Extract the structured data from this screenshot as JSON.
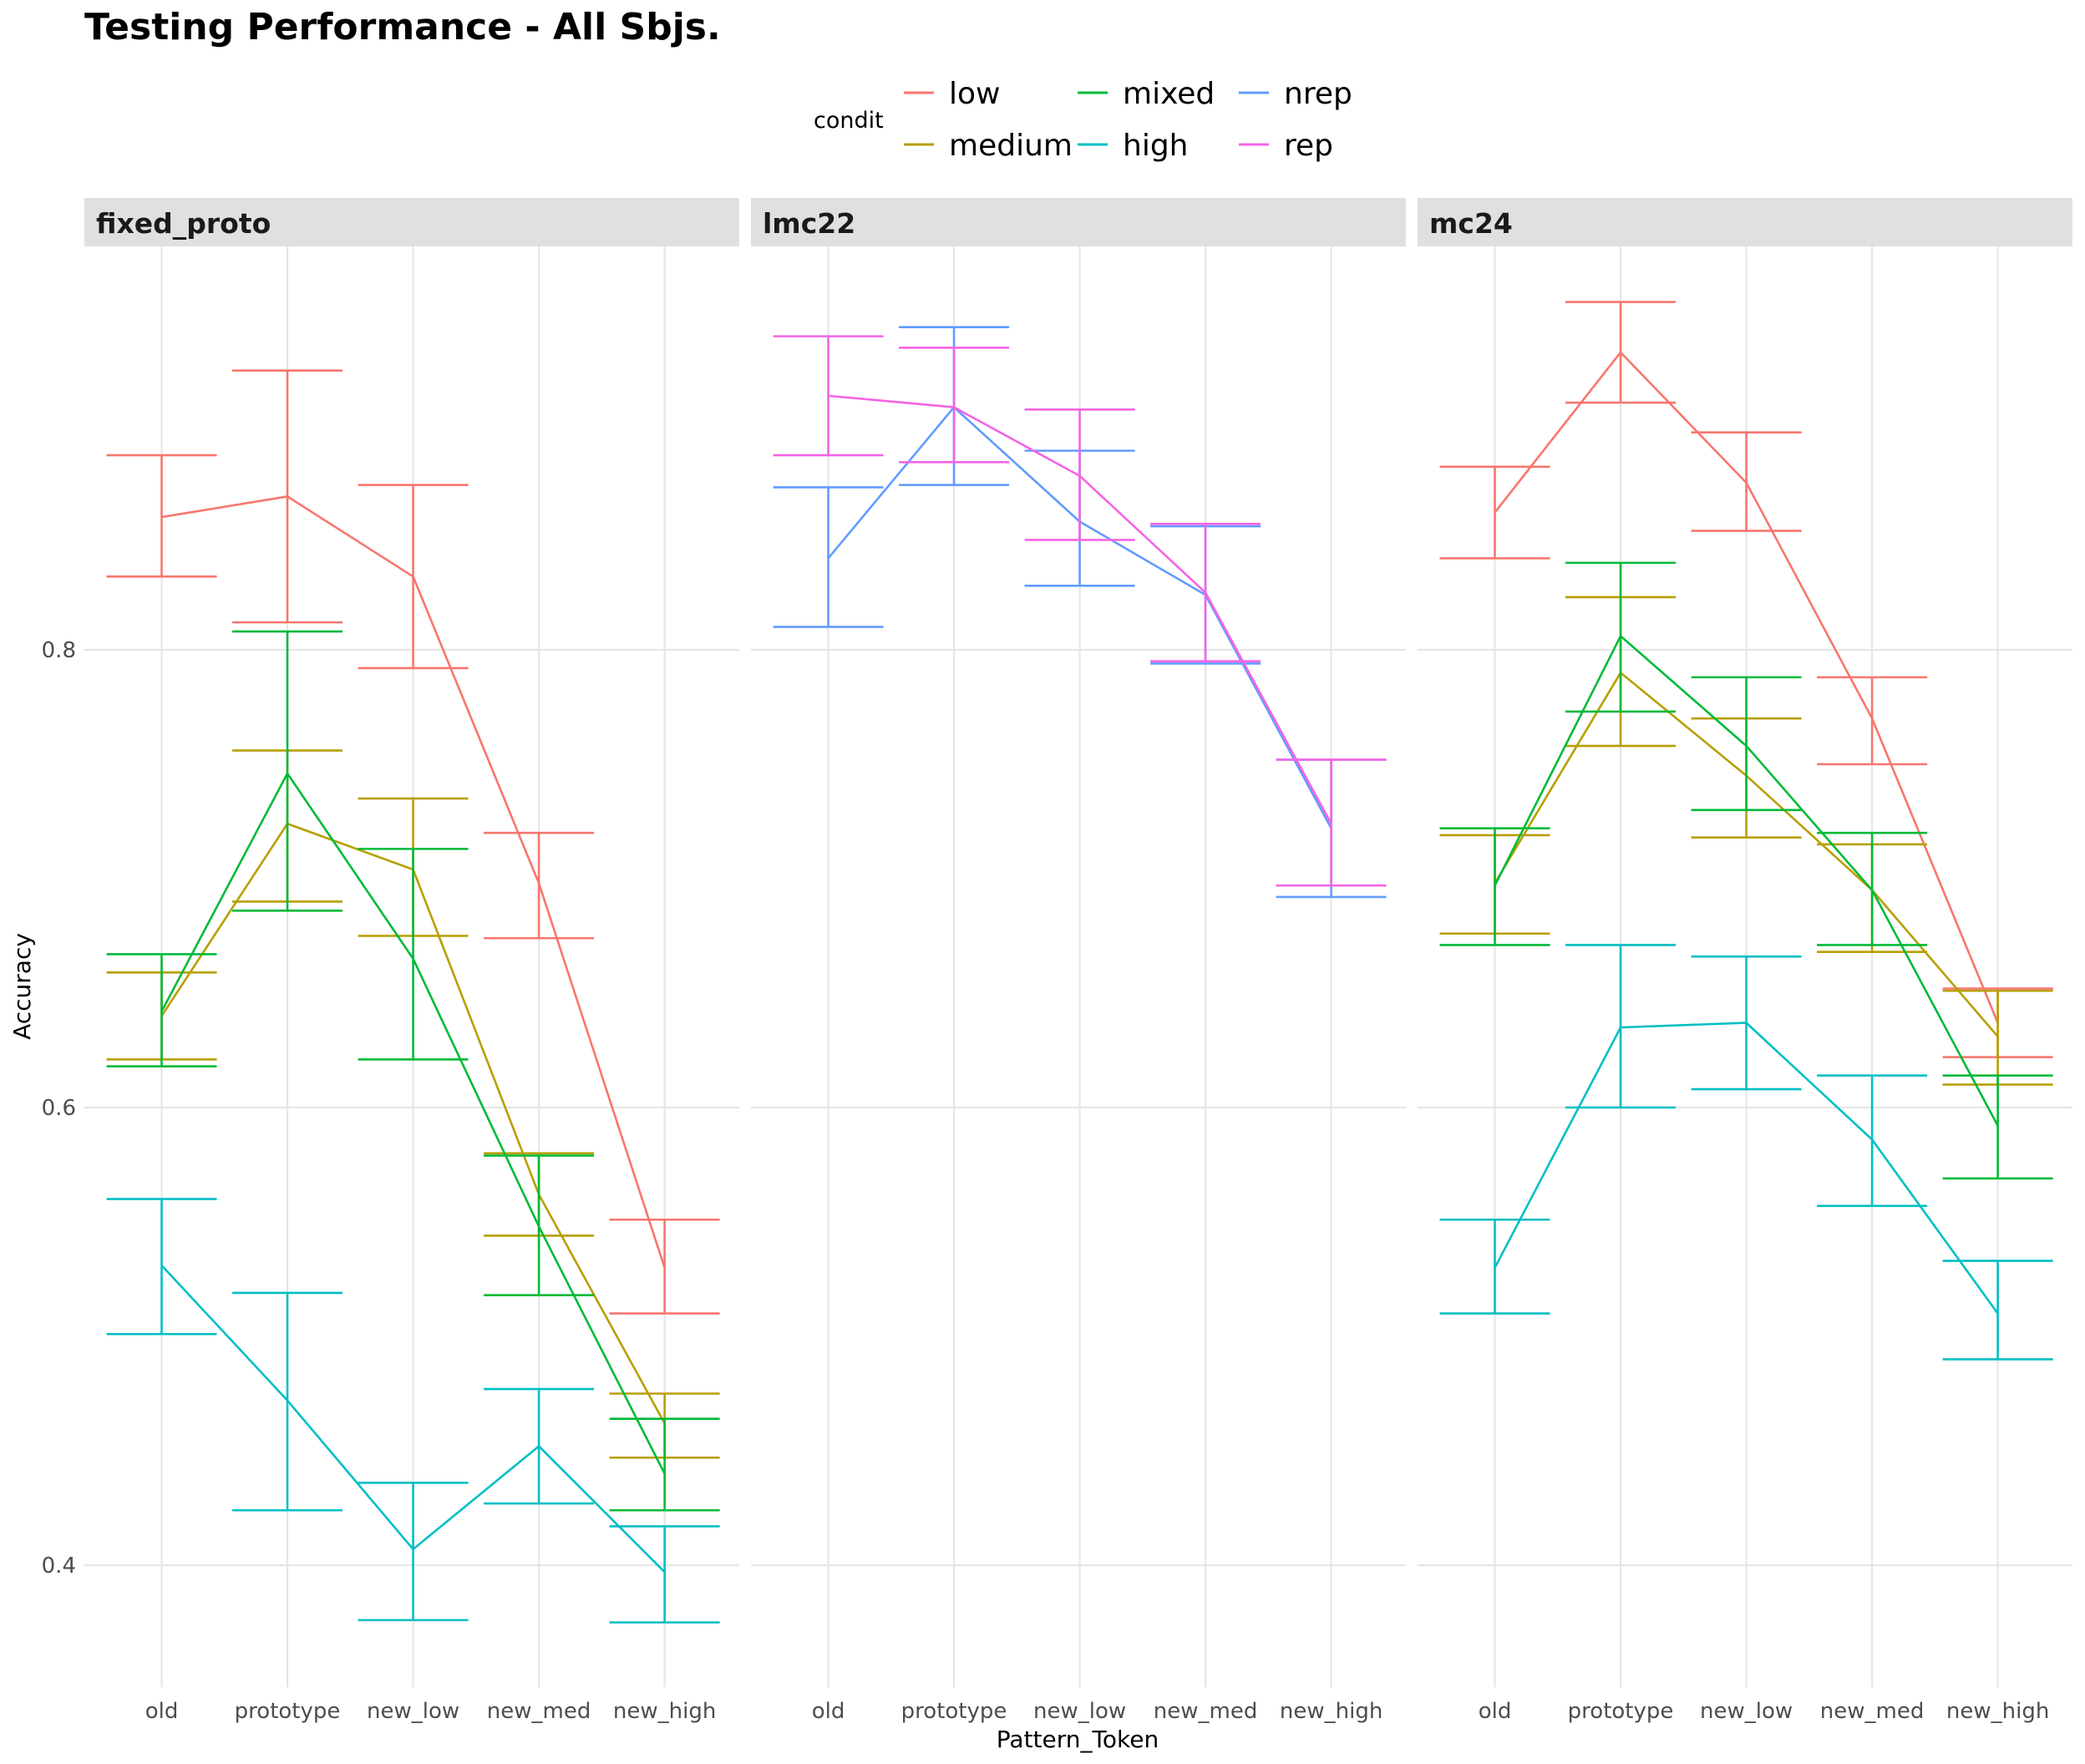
{
  "chart_data": {
    "type": "line",
    "title": "Testing Performance - All Sbjs.",
    "xlabel": "Pattern_Token",
    "ylabel": "Accuracy",
    "categories": [
      "old",
      "prototype",
      "new_low",
      "new_med",
      "new_high"
    ],
    "ylim": [
      0.35,
      0.97
    ],
    "y_ticks": [
      0.4,
      0.6,
      0.8
    ],
    "y_tick_labels": [
      "0.4",
      "0.6",
      "0.8"
    ],
    "grid": true,
    "legend": {
      "title": "condit",
      "position": "top",
      "entries": [
        {
          "label": "low",
          "color": "#F8766D"
        },
        {
          "label": "medium",
          "color": "#B79F00"
        },
        {
          "label": "mixed",
          "color": "#00BA38"
        },
        {
          "label": "high",
          "color": "#00BFC4"
        },
        {
          "label": "nrep",
          "color": "#619CFF"
        },
        {
          "label": "rep",
          "color": "#F564E3"
        }
      ]
    },
    "facets": [
      {
        "label": "fixed_proto",
        "series": [
          {
            "name": "low",
            "color": "#F8766D",
            "values": [
              0.858,
              0.867,
              0.832,
              0.698,
              0.53
            ],
            "lower": [
              0.832,
              0.812,
              0.792,
              0.674,
              0.51
            ],
            "upper": [
              0.885,
              0.922,
              0.872,
              0.72,
              0.551
            ]
          },
          {
            "name": "medium",
            "color": "#B79F00",
            "values": [
              0.64,
              0.724,
              0.704,
              0.562,
              0.462
            ],
            "lower": [
              0.621,
              0.69,
              0.675,
              0.544,
              0.447
            ],
            "upper": [
              0.659,
              0.756,
              0.735,
              0.58,
              0.475
            ]
          },
          {
            "name": "mixed",
            "color": "#00BA38",
            "values": [
              0.642,
              0.746,
              0.665,
              0.548,
              0.44
            ],
            "lower": [
              0.618,
              0.686,
              0.621,
              0.518,
              0.424
            ],
            "upper": [
              0.667,
              0.808,
              0.713,
              0.579,
              0.464
            ]
          },
          {
            "name": "high",
            "color": "#00BFC4",
            "values": [
              0.531,
              0.472,
              0.407,
              0.452,
              0.397
            ],
            "lower": [
              0.501,
              0.424,
              0.376,
              0.427,
              0.375
            ],
            "upper": [
              0.56,
              0.519,
              0.436,
              0.477,
              0.417
            ]
          }
        ]
      },
      {
        "label": "lmc22",
        "series": [
          {
            "name": "nrep",
            "color": "#619CFF",
            "values": [
              0.84,
              0.906,
              0.856,
              0.824,
              0.722
            ],
            "lower": [
              0.81,
              0.872,
              0.828,
              0.794,
              0.692
            ],
            "upper": [
              0.871,
              0.941,
              0.887,
              0.854,
              0.752
            ]
          },
          {
            "name": "rep",
            "color": "#F564E3",
            "values": [
              0.911,
              0.906,
              0.876,
              0.825,
              0.724
            ],
            "lower": [
              0.885,
              0.882,
              0.848,
              0.795,
              0.697
            ],
            "upper": [
              0.937,
              0.932,
              0.905,
              0.855,
              0.752
            ]
          }
        ]
      },
      {
        "label": "mc24",
        "series": [
          {
            "name": "low",
            "color": "#F8766D",
            "values": [
              0.86,
              0.93,
              0.873,
              0.77,
              0.637
            ],
            "lower": [
              0.84,
              0.908,
              0.852,
              0.75,
              0.622
            ],
            "upper": [
              0.88,
              0.952,
              0.895,
              0.788,
              0.652
            ]
          },
          {
            "name": "medium",
            "color": "#B79F00",
            "values": [
              0.698,
              0.79,
              0.745,
              0.695,
              0.631
            ],
            "lower": [
              0.676,
              0.758,
              0.718,
              0.668,
              0.61
            ],
            "upper": [
              0.719,
              0.823,
              0.77,
              0.715,
              0.651
            ]
          },
          {
            "name": "mixed",
            "color": "#00BA38",
            "values": [
              0.697,
              0.806,
              0.758,
              0.695,
              0.592
            ],
            "lower": [
              0.671,
              0.773,
              0.73,
              0.671,
              0.569
            ],
            "upper": [
              0.722,
              0.838,
              0.788,
              0.72,
              0.614
            ]
          },
          {
            "name": "high",
            "color": "#00BFC4",
            "values": [
              0.53,
              0.635,
              0.637,
              0.586,
              0.51
            ],
            "lower": [
              0.51,
              0.6,
              0.608,
              0.557,
              0.49
            ],
            "upper": [
              0.551,
              0.671,
              0.666,
              0.614,
              0.533
            ]
          }
        ]
      }
    ]
  }
}
